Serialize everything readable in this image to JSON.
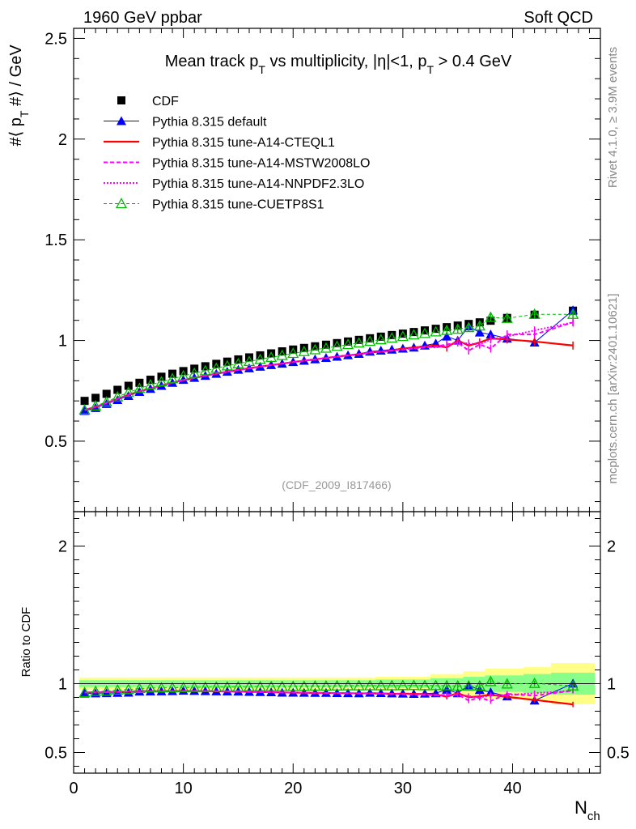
{
  "header": {
    "left": "1960 GeV ppbar",
    "right": "Soft QCD"
  },
  "chart_data": {
    "type": "scatter",
    "title": "Mean track p_T vs multiplicity, |η|<1, p_T > 0.4 GeV",
    "title_parts": {
      "a": "Mean track p",
      "b": "T",
      "c": " vs multiplicity, ",
      "d": "|η|<1, p",
      "e": "T",
      "f": " > 0.4 GeV"
    },
    "analysis_tag": "(CDF_2009_I817466)",
    "ylabel_parts": {
      "a": "#⟨ p",
      "b": "T",
      "c": " #⟩ / GeV"
    },
    "xlabel_parts": {
      "a": "N",
      "b": "ch"
    },
    "ratio_ylabel": "Ratio to CDF",
    "side_text_top": "Rivet 4.1.0, ≥ 3.9M events",
    "side_text_bottom": "mcplots.cern.ch [arXiv:2401.10621]",
    "xlim": [
      0,
      48
    ],
    "ylim": [
      0.15,
      2.55
    ],
    "ratio_ylim": [
      0.35,
      2.25
    ],
    "x_ticks": [
      "0",
      "10",
      "20",
      "30",
      "40"
    ],
    "y_ticks": [
      "0.5",
      "1",
      "1.5",
      "2",
      "2.5"
    ],
    "ratio_y_ticks": [
      "0.5",
      "1",
      "2"
    ],
    "x": [
      1,
      2,
      3,
      4,
      5,
      6,
      7,
      8,
      9,
      10,
      11,
      12,
      13,
      14,
      15,
      16,
      17,
      18,
      19,
      20,
      21,
      22,
      23,
      24,
      25,
      26,
      27,
      28,
      29,
      30,
      31,
      32,
      33,
      34,
      35,
      36,
      37,
      38,
      39.5,
      42,
      45.5
    ],
    "cdf": [
      0.7,
      0.715,
      0.735,
      0.755,
      0.775,
      0.79,
      0.805,
      0.82,
      0.835,
      0.848,
      0.86,
      0.872,
      0.884,
      0.895,
      0.906,
      0.916,
      0.926,
      0.936,
      0.946,
      0.955,
      0.963,
      0.971,
      0.979,
      0.987,
      0.995,
      1.003,
      1.011,
      1.019,
      1.027,
      1.034,
      1.042,
      1.05,
      1.058,
      1.066,
      1.074,
      1.082,
      1.09,
      1.098,
      1.112,
      1.128,
      1.148
    ],
    "ratio_band": {
      "edges": [
        0.5,
        27.5,
        32.5,
        35.5,
        37.5,
        41,
        43.5,
        47.5
      ],
      "green": [
        0.025,
        0.03,
        0.04,
        0.05,
        0.06,
        0.07,
        0.08
      ],
      "yellow": [
        0.045,
        0.05,
        0.07,
        0.09,
        0.11,
        0.12,
        0.15
      ]
    },
    "legend": [
      "CDF",
      "Pythia 8.315 default",
      "Pythia 8.315 tune-A14-CTEQL1",
      "Pythia 8.315 tune-A14-MSTW2008LO",
      "Pythia 8.315 tune-A14-NNPDF2.3LO",
      "Pythia 8.315 tune-CUETP8S1"
    ],
    "series": [
      {
        "name": "Pythia 8.315 default",
        "color": "#0000ff",
        "values": [
          0.65,
          0.665,
          0.685,
          0.705,
          0.725,
          0.745,
          0.76,
          0.775,
          0.79,
          0.805,
          0.815,
          0.825,
          0.835,
          0.845,
          0.855,
          0.862,
          0.87,
          0.878,
          0.885,
          0.893,
          0.9,
          0.907,
          0.914,
          0.92,
          0.927,
          0.934,
          0.945,
          0.95,
          0.955,
          0.96,
          0.965,
          0.975,
          0.985,
          1.02,
          1.0,
          1.07,
          1.04,
          1.03,
          1.01,
          0.99,
          1.15
        ]
      },
      {
        "name": "Pythia 8.315 tune-A14-CTEQL1",
        "color": "#ff0000",
        "values": [
          0.655,
          0.67,
          0.69,
          0.71,
          0.73,
          0.748,
          0.762,
          0.776,
          0.79,
          0.803,
          0.814,
          0.825,
          0.835,
          0.845,
          0.854,
          0.862,
          0.87,
          0.878,
          0.885,
          0.893,
          0.9,
          0.906,
          0.913,
          0.92,
          0.926,
          0.932,
          0.94,
          0.945,
          0.95,
          0.96,
          0.965,
          0.97,
          0.975,
          0.965,
          1.0,
          0.975,
          0.99,
          1.01,
          1.005,
          0.995,
          0.975
        ]
      },
      {
        "name": "Pythia 8.315 tune-A14-MSTW2008LO",
        "color": "#ff00ff",
        "values": [
          0.655,
          0.67,
          0.69,
          0.71,
          0.73,
          0.748,
          0.762,
          0.776,
          0.79,
          0.803,
          0.814,
          0.825,
          0.835,
          0.845,
          0.854,
          0.862,
          0.87,
          0.878,
          0.885,
          0.893,
          0.9,
          0.906,
          0.913,
          0.92,
          0.926,
          0.932,
          0.94,
          0.945,
          0.95,
          0.955,
          0.96,
          0.965,
          0.97,
          0.98,
          0.99,
          0.95,
          0.98,
          0.96,
          1.03,
          1.03,
          1.09
        ]
      },
      {
        "name": "Pythia 8.315 tune-A14-NNPDF2.3LO",
        "color": "#ff00ff",
        "values": [
          0.655,
          0.67,
          0.69,
          0.71,
          0.73,
          0.748,
          0.762,
          0.776,
          0.79,
          0.803,
          0.814,
          0.825,
          0.835,
          0.845,
          0.854,
          0.862,
          0.87,
          0.878,
          0.885,
          0.893,
          0.9,
          0.906,
          0.913,
          0.92,
          0.926,
          0.932,
          0.94,
          0.945,
          0.95,
          0.955,
          0.96,
          0.97,
          0.965,
          0.975,
          0.99,
          0.985,
          0.98,
          1.005,
          1.02,
          1.05,
          1.09
        ]
      },
      {
        "name": "Pythia 8.315 tune-CUETP8S1",
        "color": "#00bb00",
        "values": [
          0.655,
          0.675,
          0.695,
          0.72,
          0.742,
          0.762,
          0.78,
          0.795,
          0.81,
          0.824,
          0.837,
          0.85,
          0.862,
          0.874,
          0.885,
          0.896,
          0.906,
          0.916,
          0.926,
          0.936,
          0.945,
          0.954,
          0.962,
          0.971,
          0.98,
          0.988,
          0.996,
          1.004,
          1.012,
          1.02,
          1.028,
          1.035,
          1.043,
          1.05,
          1.056,
          1.064,
          1.072,
          1.115,
          1.11,
          1.13,
          1.13
        ]
      }
    ]
  }
}
